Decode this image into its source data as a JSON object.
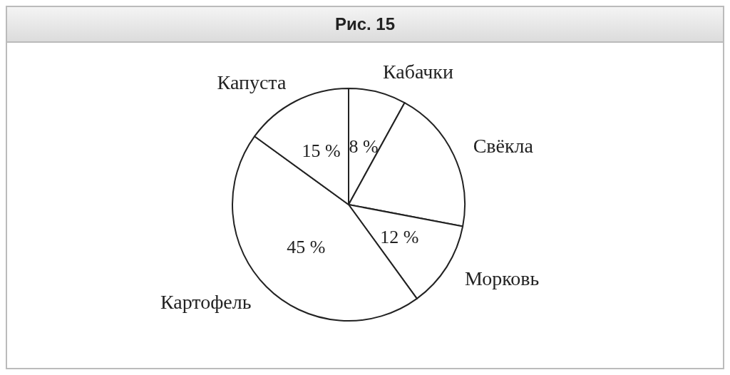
{
  "chart_data": {
    "type": "pie",
    "title": "Рис. 15",
    "categories": [
      "Кабачки",
      "Свёкла",
      "Морковь",
      "Картофель",
      "Капуста"
    ],
    "values": [
      8,
      20,
      12,
      45,
      15
    ],
    "value_labels": [
      "8 %",
      null,
      "12 %",
      "45 %",
      "15 %"
    ],
    "colors": [
      "#ffffff",
      "#ffffff",
      "#ffffff",
      "#ffffff",
      "#ffffff"
    ],
    "legend": false
  }
}
